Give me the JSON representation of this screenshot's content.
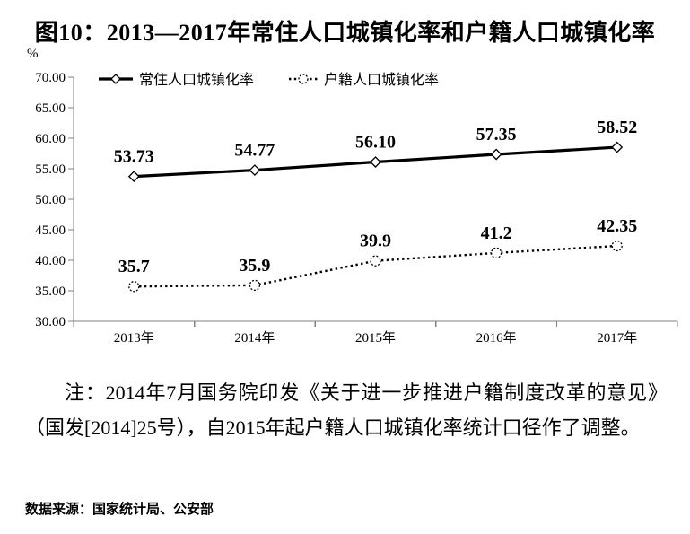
{
  "title": "图10：2013—2017年常住人口城镇化率和户籍人口城镇化率",
  "note": "注：2014年7月国务院印发《关于进一步推进户籍制度改革的意见》（国发[2014]25号），自2015年起户籍人口城镇化率统计口径作了调整。",
  "source": "数据来源：国家统计局、公安部",
  "chart_data": {
    "type": "line",
    "title": "图10：2013—2017年常住人口城镇化率和户籍人口城镇化率",
    "unit_label": "%",
    "categories": [
      "2013年",
      "2014年",
      "2015年",
      "2016年",
      "2017年"
    ],
    "series": [
      {
        "name": "常住人口城镇化率",
        "values": [
          53.73,
          54.77,
          56.1,
          57.35,
          58.52
        ],
        "labels": [
          "53.73",
          "54.77",
          "56.10",
          "57.35",
          "58.52"
        ],
        "line_style": "solid",
        "marker": "diamond",
        "color": "#000000"
      },
      {
        "name": "户籍人口城镇化率",
        "values": [
          35.7,
          35.9,
          39.9,
          41.2,
          42.35
        ],
        "labels": [
          "35.7",
          "35.9",
          "39.9",
          "41.2",
          "42.35"
        ],
        "line_style": "dotted",
        "marker": "circle",
        "color": "#000000"
      }
    ],
    "ylim": [
      30,
      70
    ],
    "y_tick_step": 5,
    "y_tick_labels": [
      "30.00",
      "35.00",
      "40.00",
      "45.00",
      "50.00",
      "55.00",
      "60.00",
      "65.00",
      "70.00"
    ],
    "xlabel": "",
    "ylabel": "%",
    "grid": false,
    "legend_position": "top-inside",
    "axis_color": "#808080",
    "label_color": "#000000"
  }
}
